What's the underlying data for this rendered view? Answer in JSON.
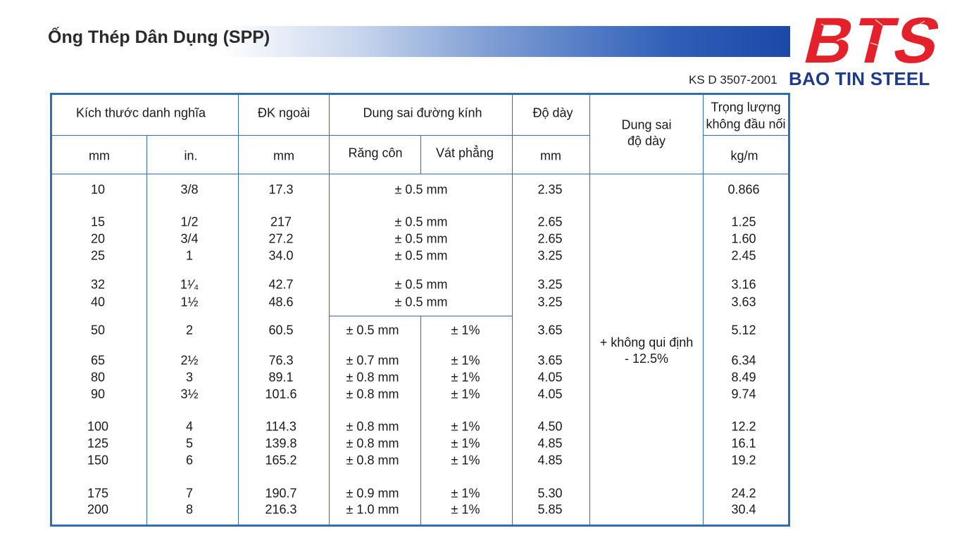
{
  "header": {
    "title": "Ống Thép Dân Dụng (SPP)",
    "standard": "KS D 3507-2001",
    "logo_text": "BTS",
    "brand_name": "BAO TIN STEEL",
    "brand_color": "#e4202a",
    "accent_color": "#1e3a8a"
  },
  "table": {
    "headers": {
      "nominal_size": "Kích thước danh nghĩa",
      "outer_diameter": "ĐK ngoài",
      "diameter_tolerance": "Dung sai đường kính",
      "thickness": "Độ dày",
      "thickness_tolerance_l1": "Dung sai",
      "thickness_tolerance_l2": "độ dày",
      "weight_l1": "Trọng lượng",
      "weight_l2": "không đầu nối"
    },
    "subheaders": {
      "mm": "mm",
      "in": "in.",
      "od_unit": "mm",
      "threaded": "Răng côn",
      "beveled": "Vát phẳng",
      "thickness_unit": "mm",
      "weight_unit": "kg/m"
    },
    "thickness_tolerance_value_l1": "+ không qui định",
    "thickness_tolerance_value_l2": "- 12.5%",
    "single_tolerance": [
      "± 0.5 mm",
      "± 0.5 mm",
      "± 0.5 mm",
      "± 0.5 mm",
      "± 0.5 mm",
      "± 0.5 mm"
    ],
    "rows": [
      {
        "mm": "10",
        "in": "3/8",
        "od": "17.3",
        "thickness": "2.35",
        "weight": "0.866"
      },
      {
        "mm": "15",
        "in": "1/2",
        "od": "217",
        "thickness": "2.65",
        "weight": "1.25"
      },
      {
        "mm": "20",
        "in": "3/4",
        "od": "27.2",
        "thickness": "2.65",
        "weight": "1.60"
      },
      {
        "mm": "25",
        "in": "1",
        "od": "34.0",
        "thickness": "3.25",
        "weight": "2.45"
      },
      {
        "mm": "32",
        "in": "1¹⁄₄",
        "od": "42.7",
        "thickness": "3.25",
        "weight": "3.16"
      },
      {
        "mm": "40",
        "in": "1½",
        "od": "48.6",
        "thickness": "3.25",
        "weight": "3.63"
      },
      {
        "mm": "50",
        "in": "2",
        "od": "60.5",
        "threaded": "± 0.5 mm",
        "beveled": "± 1%",
        "thickness": "3.65",
        "weight": "5.12"
      },
      {
        "mm": "65",
        "in": "2½",
        "od": "76.3",
        "threaded": "± 0.7 mm",
        "beveled": "± 1%",
        "thickness": "3.65",
        "weight": "6.34"
      },
      {
        "mm": "80",
        "in": "3",
        "od": "89.1",
        "threaded": "± 0.8 mm",
        "beveled": "± 1%",
        "thickness": "4.05",
        "weight": "8.49"
      },
      {
        "mm": "90",
        "in": "3½",
        "od": "101.6",
        "threaded": "± 0.8 mm",
        "beveled": "± 1%",
        "thickness": "4.05",
        "weight": "9.74"
      },
      {
        "mm": "100",
        "in": "4",
        "od": "114.3",
        "threaded": "± 0.8 mm",
        "beveled": "± 1%",
        "thickness": "4.50",
        "weight": "12.2"
      },
      {
        "mm": "125",
        "in": "5",
        "od": "139.8",
        "threaded": "± 0.8 mm",
        "beveled": "± 1%",
        "thickness": "4.85",
        "weight": "16.1"
      },
      {
        "mm": "150",
        "in": "6",
        "od": "165.2",
        "threaded": "± 0.8 mm",
        "beveled": "± 1%",
        "thickness": "4.85",
        "weight": "19.2"
      },
      {
        "mm": "175",
        "in": "7",
        "od": "190.7",
        "threaded": "± 0.9 mm",
        "beveled": "± 1%",
        "thickness": "5.30",
        "weight": "24.2"
      },
      {
        "mm": "200",
        "in": "8",
        "od": "216.3",
        "threaded": "± 1.0 mm",
        "beveled": "± 1%",
        "thickness": "5.85",
        "weight": "30.4"
      }
    ]
  }
}
